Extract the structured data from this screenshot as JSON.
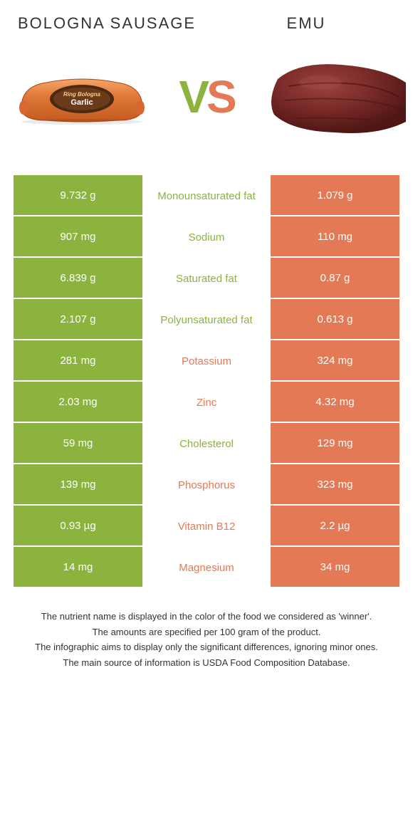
{
  "left_title": "Bologna sausage",
  "right_title": "Emu",
  "vs_glyph_v": "V",
  "vs_glyph_s": "S",
  "colors": {
    "left": "#8db33f",
    "right": "#e47a55",
    "bg": "#ffffff",
    "text": "#333333",
    "sausage_fill": "#e07838",
    "sausage_band": "#4a2a10",
    "emu_meat_dark": "#641f1d",
    "emu_meat_light": "#8a3330"
  },
  "rows": [
    {
      "left": "9.732 g",
      "mid": "Monounsaturated fat",
      "right": "1.079 g",
      "winner": "left"
    },
    {
      "left": "907 mg",
      "mid": "Sodium",
      "right": "110 mg",
      "winner": "left"
    },
    {
      "left": "6.839 g",
      "mid": "Saturated fat",
      "right": "0.87 g",
      "winner": "left"
    },
    {
      "left": "2.107 g",
      "mid": "Polyunsaturated fat",
      "right": "0.613 g",
      "winner": "left"
    },
    {
      "left": "281 mg",
      "mid": "Potassium",
      "right": "324 mg",
      "winner": "right"
    },
    {
      "left": "2.03 mg",
      "mid": "Zinc",
      "right": "4.32 mg",
      "winner": "right"
    },
    {
      "left": "59 mg",
      "mid": "Cholesterol",
      "right": "129 mg",
      "winner": "left"
    },
    {
      "left": "139 mg",
      "mid": "Phosphorus",
      "right": "323 mg",
      "winner": "right"
    },
    {
      "left": "0.93 µg",
      "mid": "Vitamin B12",
      "right": "2.2 µg",
      "winner": "right"
    },
    {
      "left": "14 mg",
      "mid": "Magnesium",
      "right": "34 mg",
      "winner": "right"
    }
  ],
  "footer": [
    "The nutrient name is displayed in the color of the food we considered as 'winner'.",
    "The amounts are specified per 100 gram of the product.",
    "The infographic aims to display only the significant differences, ignoring minor ones.",
    "The main source of information is USDA Food Composition Database."
  ]
}
